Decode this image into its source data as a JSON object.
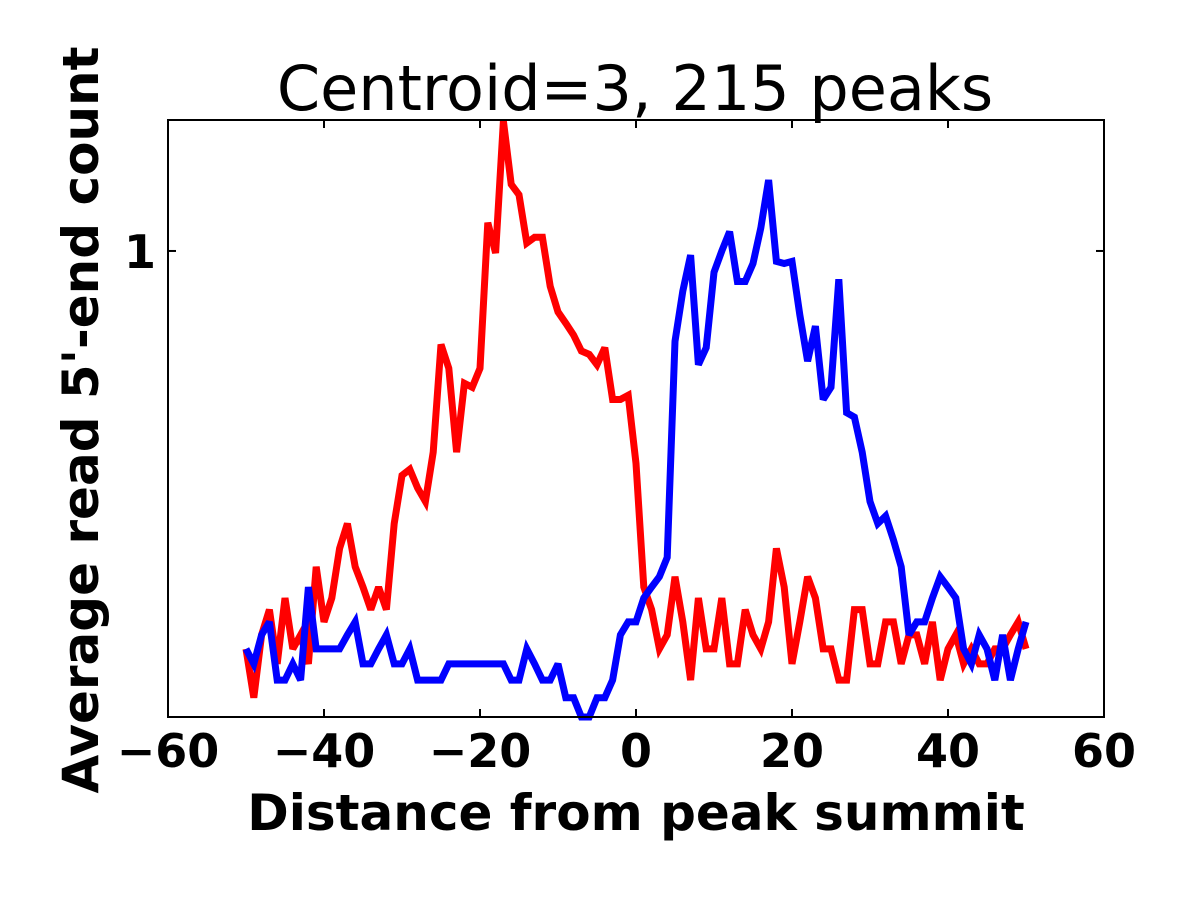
{
  "chart_data": {
    "type": "line",
    "title": "Centroid=3, 215 peaks",
    "xlabel": "Distance from peak summit",
    "ylabel": "Average read 5'-end count",
    "xlim": [
      -60,
      60
    ],
    "ylim": [
      0.1,
      1.91
    ],
    "x_ticks": [
      -60,
      -40,
      -20,
      0,
      20,
      40,
      60
    ],
    "x_tick_labels": [
      "−60",
      "−40",
      "−20",
      "0",
      "20",
      "40",
      "60"
    ],
    "y_ticks": [
      1
    ],
    "y_tick_labels": [
      "1"
    ],
    "grid": false,
    "legend": "none",
    "series": [
      {
        "color": "#ff0000",
        "x": [
          -50,
          -49,
          -48,
          -47,
          -46,
          -45,
          -44,
          -43,
          -42,
          -41,
          -40,
          -39,
          -38,
          -37,
          -36,
          -35,
          -34,
          -33,
          -32,
          -31,
          -30,
          -29,
          -28,
          -27,
          -26,
          -25,
          -24,
          -23,
          -22,
          -21,
          -20,
          -19,
          -18,
          -17,
          -16,
          -15,
          -14,
          -13,
          -12,
          -11,
          -10,
          -9,
          -8,
          -7,
          -6,
          -5,
          -4,
          -3,
          -2,
          -1,
          0,
          1,
          2,
          3,
          4,
          5,
          6,
          7,
          8,
          9,
          10,
          11,
          12,
          13,
          14,
          15,
          16,
          17,
          18,
          19,
          20,
          21,
          22,
          23,
          24,
          25,
          26,
          27,
          28,
          29,
          30,
          31,
          32,
          33,
          34,
          35,
          36,
          37,
          38,
          39,
          40,
          41,
          42,
          43,
          44,
          45,
          46,
          47,
          48,
          49,
          50
        ],
        "values": [
          0.14,
          0.11,
          0.15,
          0.17,
          0.13,
          0.18,
          0.14,
          0.15,
          0.13,
          0.21,
          0.16,
          0.18,
          0.23,
          0.26,
          0.21,
          0.19,
          0.17,
          0.19,
          0.17,
          0.26,
          0.33,
          0.34,
          0.31,
          0.29,
          0.37,
          0.63,
          0.56,
          0.37,
          0.52,
          0.51,
          0.56,
          1.15,
          0.99,
          1.9,
          1.39,
          1.32,
          1.04,
          1.07,
          1.07,
          0.84,
          0.74,
          0.7,
          0.66,
          0.61,
          0.6,
          0.57,
          0.62,
          0.48,
          0.48,
          0.49,
          0.35,
          0.19,
          0.17,
          0.14,
          0.15,
          0.2,
          0.16,
          0.12,
          0.18,
          0.14,
          0.14,
          0.18,
          0.13,
          0.13,
          0.17,
          0.15,
          0.14,
          0.16,
          0.23,
          0.19,
          0.13,
          0.16,
          0.2,
          0.18,
          0.14,
          0.14,
          0.12,
          0.12,
          0.17,
          0.17,
          0.13,
          0.13,
          0.16,
          0.16,
          0.13,
          0.15,
          0.15,
          0.13,
          0.16,
          0.12,
          0.14,
          0.15,
          0.13,
          0.14,
          0.13,
          0.13,
          0.14,
          0.14,
          0.15,
          0.16,
          0.14
        ]
      },
      {
        "color": "#0000ff",
        "x": [
          -50,
          -49,
          -48,
          -47,
          -46,
          -45,
          -44,
          -43,
          -42,
          -41,
          -40,
          -39,
          -38,
          -37,
          -36,
          -35,
          -34,
          -33,
          -32,
          -31,
          -30,
          -29,
          -28,
          -27,
          -26,
          -25,
          -24,
          -23,
          -22,
          -21,
          -20,
          -19,
          -18,
          -17,
          -16,
          -15,
          -14,
          -13,
          -12,
          -11,
          -10,
          -9,
          -8,
          -7,
          -6,
          -5,
          -4,
          -3,
          -2,
          -1,
          0,
          1,
          2,
          3,
          4,
          5,
          6,
          7,
          8,
          9,
          10,
          11,
          12,
          13,
          14,
          15,
          16,
          17,
          18,
          19,
          20,
          21,
          22,
          23,
          24,
          25,
          26,
          27,
          28,
          29,
          30,
          31,
          32,
          33,
          34,
          35,
          36,
          37,
          38,
          39,
          40,
          41,
          42,
          43,
          44,
          45,
          46,
          47,
          48,
          49,
          50
        ],
        "values": [
          0.14,
          0.13,
          0.15,
          0.16,
          0.12,
          0.12,
          0.13,
          0.12,
          0.19,
          0.14,
          0.14,
          0.14,
          0.14,
          0.15,
          0.16,
          0.13,
          0.13,
          0.14,
          0.15,
          0.13,
          0.13,
          0.14,
          0.12,
          0.12,
          0.12,
          0.12,
          0.13,
          0.13,
          0.13,
          0.13,
          0.13,
          0.13,
          0.13,
          0.13,
          0.12,
          0.12,
          0.14,
          0.13,
          0.12,
          0.12,
          0.13,
          0.11,
          0.11,
          0.1,
          0.1,
          0.11,
          0.11,
          0.12,
          0.15,
          0.16,
          0.16,
          0.18,
          0.19,
          0.2,
          0.22,
          0.64,
          0.82,
          0.98,
          0.57,
          0.62,
          0.9,
          1.0,
          1.1,
          0.86,
          0.86,
          0.94,
          1.12,
          1.42,
          0.95,
          0.94,
          0.95,
          0.73,
          0.58,
          0.69,
          0.48,
          0.51,
          0.87,
          0.45,
          0.44,
          0.37,
          0.29,
          0.26,
          0.27,
          0.24,
          0.21,
          0.15,
          0.16,
          0.16,
          0.18,
          0.2,
          0.19,
          0.18,
          0.14,
          0.13,
          0.15,
          0.14,
          0.12,
          0.15,
          0.12,
          0.14,
          0.16
        ]
      }
    ]
  }
}
